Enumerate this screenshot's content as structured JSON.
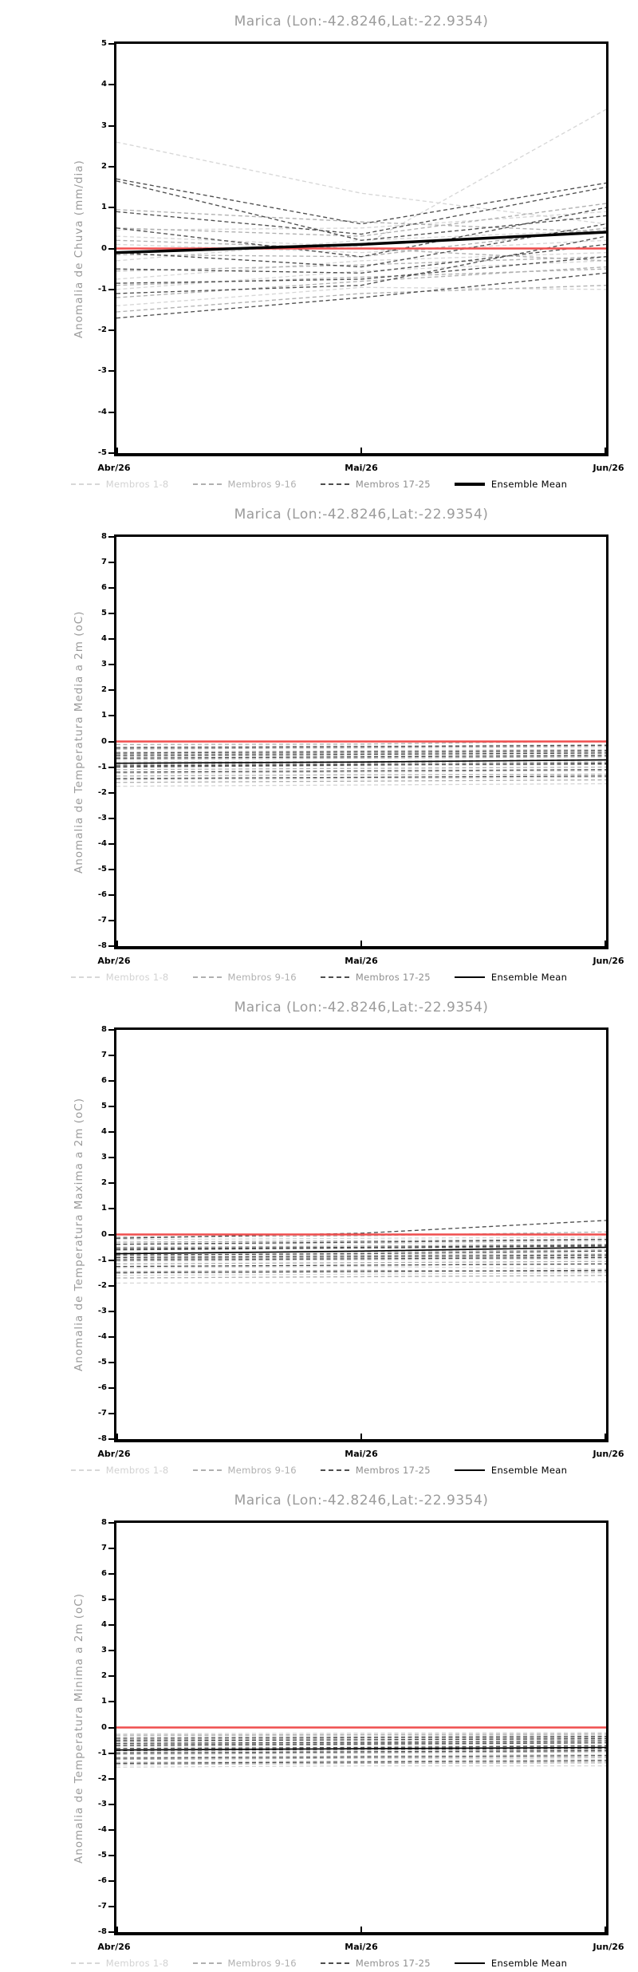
{
  "page": {
    "background": "#ffffff"
  },
  "chart_data": [
    {
      "type": "line",
      "title": "Marica (Lon:-42.8246,Lat:-22.9354)",
      "ylabel": "Anomalia de Chuva (mm/dia)",
      "ylim": [
        -5,
        5
      ],
      "ytick_step": 1,
      "x": [
        "Abr/26",
        "Mai/26",
        "Jun/26"
      ],
      "grid": false,
      "legend_position": "bottom",
      "zero_line": {
        "value": 0,
        "color": "#ef4e4e",
        "width": 2.5
      },
      "mean": {
        "label": "Ensemble Mean",
        "color": "#000000",
        "width": 3.5,
        "values": [
          -0.1,
          0.1,
          0.4
        ]
      },
      "groups": [
        {
          "label": "Membros 1-8",
          "line_color": "#d7d7d7",
          "label_color": "#d2d2d2",
          "members": [
            [
              2.6,
              1.35,
              0.6
            ],
            [
              0.3,
              0.05,
              3.4
            ],
            [
              0.45,
              0.5,
              0.9
            ],
            [
              -0.3,
              0.2,
              0.45
            ],
            [
              -0.75,
              -0.3,
              -0.1
            ],
            [
              -1.0,
              -0.55,
              -0.3
            ],
            [
              -1.4,
              -0.95,
              -1.0
            ],
            [
              0.1,
              -0.1,
              0.2
            ]
          ]
        },
        {
          "label": "Membros 9-16",
          "line_color": "#b0b0b0",
          "label_color": "#b0b0b0",
          "members": [
            [
              0.95,
              0.65,
              0.4
            ],
            [
              0.5,
              0.3,
              1.1
            ],
            [
              -0.15,
              -0.2,
              0.5
            ],
            [
              -0.55,
              -0.4,
              -0.2
            ],
            [
              -0.9,
              -0.7,
              -0.5
            ],
            [
              -1.2,
              -0.8,
              -0.45
            ],
            [
              -1.55,
              -1.1,
              -0.9
            ],
            [
              0.2,
              0.0,
              -0.3
            ]
          ]
        },
        {
          "label": "Membros 17-25",
          "line_color": "#4e4e4e",
          "label_color": "#8e8e8e",
          "members": [
            [
              1.7,
              0.6,
              1.6
            ],
            [
              1.65,
              0.2,
              0.8
            ],
            [
              0.9,
              0.35,
              1.5
            ],
            [
              0.5,
              -0.2,
              1.0
            ],
            [
              -0.1,
              -0.45,
              0.6
            ],
            [
              -0.5,
              -0.6,
              0.1
            ],
            [
              -0.85,
              -0.75,
              -0.2
            ],
            [
              -1.1,
              -0.9,
              0.3
            ],
            [
              -1.7,
              -1.2,
              -0.6
            ]
          ]
        }
      ]
    },
    {
      "type": "line",
      "title": "Marica (Lon:-42.8246,Lat:-22.9354)",
      "ylabel": "Anomalia de Temperatura Media a 2m (oC)",
      "ylim": [
        -8,
        8
      ],
      "ytick_step": 1,
      "x": [
        "Abr/26",
        "Mai/26",
        "Jun/26"
      ],
      "grid": false,
      "legend_position": "bottom",
      "zero_line": {
        "value": 0,
        "color": "#ef4e4e",
        "width": 2.5
      },
      "mean": {
        "label": "Ensemble Mean",
        "color": "#000000",
        "width": 1.6,
        "values": [
          -0.85,
          -0.8,
          -0.72
        ]
      },
      "groups": [
        {
          "label": "Membros 1-8",
          "line_color": "#d7d7d7",
          "label_color": "#d2d2d2",
          "members": [
            [
              -1.75,
              -1.7,
              -1.65
            ],
            [
              -1.5,
              -1.45,
              -1.4
            ],
            [
              -1.25,
              -1.2,
              -1.15
            ],
            [
              -1.0,
              -0.95,
              -0.9
            ],
            [
              -0.8,
              -0.78,
              -0.7
            ],
            [
              -0.6,
              -0.55,
              -0.5
            ],
            [
              -0.4,
              -0.35,
              -0.3
            ],
            [
              -0.2,
              -0.18,
              -0.12
            ]
          ]
        },
        {
          "label": "Membros 9-16",
          "line_color": "#b0b0b0",
          "label_color": "#b0b0b0",
          "members": [
            [
              -1.6,
              -1.55,
              -1.5
            ],
            [
              -1.35,
              -1.3,
              -1.28
            ],
            [
              -1.1,
              -1.05,
              -1.0
            ],
            [
              -0.9,
              -0.85,
              -0.8
            ],
            [
              -0.7,
              -0.65,
              -0.6
            ],
            [
              -0.5,
              -0.45,
              -0.4
            ],
            [
              -0.3,
              -0.25,
              -0.2
            ],
            [
              -0.12,
              -0.1,
              0.02
            ]
          ]
        },
        {
          "label": "Membros 17-25",
          "line_color": "#4e4e4e",
          "label_color": "#8e8e8e",
          "members": [
            [
              -1.45,
              -1.4,
              -1.35
            ],
            [
              -1.2,
              -1.15,
              -1.1
            ],
            [
              -1.0,
              -0.92,
              -0.85
            ],
            [
              -0.85,
              -0.8,
              -0.72
            ],
            [
              -0.65,
              -0.6,
              -0.55
            ],
            [
              -0.45,
              -0.4,
              -0.35
            ],
            [
              -0.25,
              -0.2,
              -0.15
            ],
            [
              -0.95,
              -0.9,
              -0.88
            ],
            [
              -0.55,
              -0.5,
              -0.45
            ]
          ]
        }
      ]
    },
    {
      "type": "line",
      "title": "Marica (Lon:-42.8246,Lat:-22.9354)",
      "ylabel": "Anomalia de Temperatura Maxima a 2m (oC)",
      "ylim": [
        -8,
        8
      ],
      "ytick_step": 1,
      "x": [
        "Abr/26",
        "Mai/26",
        "Jun/26"
      ],
      "grid": false,
      "legend_position": "bottom",
      "zero_line": {
        "value": 0,
        "color": "#ef4e4e",
        "width": 2.5
      },
      "mean": {
        "label": "Ensemble Mean",
        "color": "#000000",
        "width": 1.6,
        "values": [
          -0.75,
          -0.65,
          -0.5
        ]
      },
      "groups": [
        {
          "label": "Membros 1-8",
          "line_color": "#d7d7d7",
          "label_color": "#d2d2d2",
          "members": [
            [
              -1.9,
              -1.88,
              -1.85
            ],
            [
              -1.6,
              -1.55,
              -1.5
            ],
            [
              -1.3,
              -1.25,
              -1.35
            ],
            [
              -1.05,
              -1.0,
              -0.95
            ],
            [
              -0.85,
              -0.8,
              -0.75
            ],
            [
              -0.6,
              -0.55,
              -0.5
            ],
            [
              -0.4,
              -0.35,
              -0.28
            ],
            [
              -0.2,
              -0.15,
              -0.1
            ]
          ]
        },
        {
          "label": "Membros 9-16",
          "line_color": "#b0b0b0",
          "label_color": "#b0b0b0",
          "members": [
            [
              -1.7,
              -1.65,
              -1.6
            ],
            [
              -1.45,
              -1.4,
              -1.45
            ],
            [
              -1.15,
              -1.1,
              -1.05
            ],
            [
              -0.95,
              -0.9,
              -0.85
            ],
            [
              -0.72,
              -0.68,
              -0.6
            ],
            [
              -0.5,
              -0.45,
              -0.38
            ],
            [
              -0.3,
              -0.25,
              -0.18
            ],
            [
              -0.1,
              -0.05,
              0.1
            ]
          ]
        },
        {
          "label": "Membros 17-25",
          "line_color": "#4e4e4e",
          "label_color": "#8e8e8e",
          "members": [
            [
              -1.5,
              -1.45,
              -1.4
            ],
            [
              -1.25,
              -1.2,
              -1.15
            ],
            [
              -1.0,
              -0.95,
              -0.9
            ],
            [
              -0.8,
              -0.75,
              -0.65
            ],
            [
              -0.6,
              -0.52,
              -0.45
            ],
            [
              -0.38,
              -0.3,
              -0.2
            ],
            [
              -0.15,
              0.05,
              0.55
            ],
            [
              -0.9,
              -0.85,
              -0.8
            ],
            [
              -0.55,
              -0.5,
              -0.42
            ]
          ]
        }
      ]
    },
    {
      "type": "line",
      "title": "Marica (Lon:-42.8246,Lat:-22.9354)",
      "ylabel": "Anomalia de Temperatura Minima a 2m (oC)",
      "ylim": [
        -8,
        8
      ],
      "ytick_step": 1,
      "x": [
        "Abr/26",
        "Mai/26",
        "Jun/26"
      ],
      "grid": false,
      "legend_position": "bottom",
      "zero_line": {
        "value": 0,
        "color": "#ef4e4e",
        "width": 2.5
      },
      "mean": {
        "label": "Ensemble Mean",
        "color": "#000000",
        "width": 1.6,
        "values": [
          -0.88,
          -0.83,
          -0.78
        ]
      },
      "groups": [
        {
          "label": "Membros 1-8",
          "line_color": "#d7d7d7",
          "label_color": "#d2d2d2",
          "members": [
            [
              -1.55,
              -1.5,
              -1.5
            ],
            [
              -1.35,
              -1.3,
              -1.25
            ],
            [
              -1.15,
              -1.1,
              -1.05
            ],
            [
              -0.95,
              -0.9,
              -0.85
            ],
            [
              -0.75,
              -0.7,
              -0.68
            ],
            [
              -0.55,
              -0.5,
              -0.45
            ],
            [
              -0.35,
              -0.3,
              -0.3
            ],
            [
              -0.25,
              -0.22,
              -0.2
            ]
          ]
        },
        {
          "label": "Membros 9-16",
          "line_color": "#b0b0b0",
          "label_color": "#b0b0b0",
          "members": [
            [
              -1.45,
              -1.4,
              -1.38
            ],
            [
              -1.25,
              -1.2,
              -1.18
            ],
            [
              -1.05,
              -1.0,
              -0.95
            ],
            [
              -0.88,
              -0.82,
              -0.78
            ],
            [
              -0.68,
              -0.62,
              -0.58
            ],
            [
              -0.48,
              -0.42,
              -0.4
            ],
            [
              -0.3,
              -0.28,
              -0.25
            ],
            [
              -1.0,
              -0.95,
              -0.92
            ]
          ]
        },
        {
          "label": "Membros 17-25",
          "line_color": "#4e4e4e",
          "label_color": "#8e8e8e",
          "members": [
            [
              -1.4,
              -1.35,
              -1.3
            ],
            [
              -1.2,
              -1.15,
              -1.1
            ],
            [
              -1.0,
              -0.95,
              -0.9
            ],
            [
              -0.82,
              -0.78,
              -0.72
            ],
            [
              -0.62,
              -0.58,
              -0.52
            ],
            [
              -0.42,
              -0.38,
              -0.35
            ],
            [
              -0.9,
              -0.85,
              -0.82
            ],
            [
              -0.7,
              -0.65,
              -0.6
            ],
            [
              -0.52,
              -0.48,
              -0.44
            ]
          ]
        }
      ]
    }
  ]
}
